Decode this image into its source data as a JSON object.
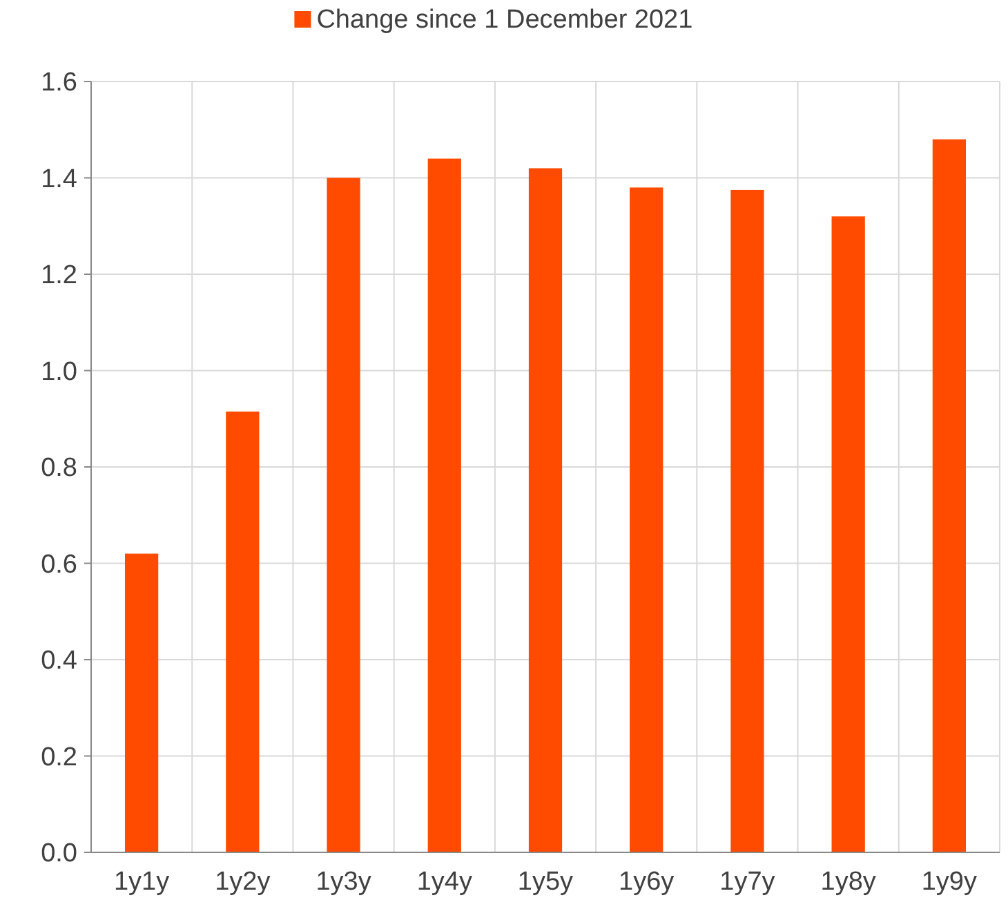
{
  "chart_data": {
    "type": "bar",
    "categories": [
      "1y1y",
      "1y2y",
      "1y3y",
      "1y4y",
      "1y5y",
      "1y6y",
      "1y7y",
      "1y8y",
      "1y9y"
    ],
    "series": [
      {
        "name": "Change since 1 December 2021",
        "color": "#ff4b00",
        "values": [
          0.62,
          0.915,
          1.4,
          1.44,
          1.42,
          1.38,
          1.375,
          1.32,
          1.48
        ]
      }
    ],
    "ylim": [
      0,
      1.6
    ],
    "yticks": [
      {
        "value": 0,
        "label": "0.0"
      },
      {
        "value": 0.2,
        "label": "0.2"
      },
      {
        "value": 0.4,
        "label": "0.4"
      },
      {
        "value": 0.6,
        "label": "0.6"
      },
      {
        "value": 0.8,
        "label": "0.8"
      },
      {
        "value": 1,
        "label": "1.0"
      },
      {
        "value": 1.2,
        "label": "1.2"
      },
      {
        "value": 1.4,
        "label": "1.4"
      },
      {
        "value": 1.6,
        "label": "1.6"
      }
    ],
    "grid": true,
    "legend": "top"
  }
}
